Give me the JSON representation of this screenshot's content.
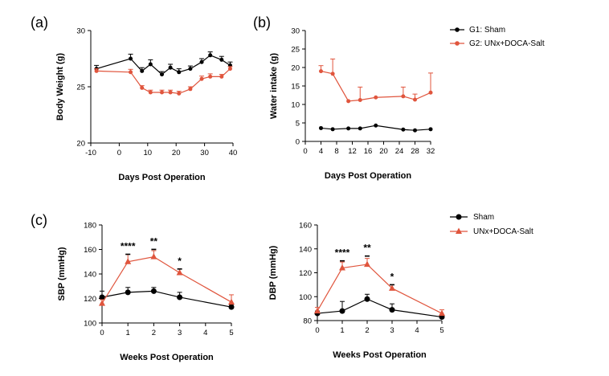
{
  "colors": {
    "sham": "#000000",
    "treat": "#e0553d"
  },
  "legends": {
    "top": [
      "G1: Sham",
      "G2: UNx+DOCA-Salt"
    ],
    "bottom": [
      "Sham",
      "UNx+DOCA-Salt"
    ]
  },
  "chart_data": [
    {
      "panel": "(a)",
      "type": "line",
      "xlabel": "Days Post Operation",
      "ylabel": "Body Weight (g)",
      "xlim": [
        -10,
        40
      ],
      "ylim": [
        20,
        30
      ],
      "xticks": [
        -10,
        0,
        10,
        20,
        30,
        40
      ],
      "yticks": [
        20,
        25,
        30
      ],
      "xtick_labels": [
        "-10",
        "0",
        "10",
        "20",
        "30",
        "40"
      ],
      "ytick_labels": [
        "20",
        "25",
        "30"
      ],
      "series": [
        {
          "name": "G1: Sham",
          "marker": "circle",
          "x": [
            -8,
            4,
            8,
            11,
            15,
            18,
            21,
            25,
            29,
            32,
            36,
            39
          ],
          "y": [
            26.6,
            27.5,
            26.4,
            27.0,
            26.1,
            26.7,
            26.3,
            26.6,
            27.2,
            27.8,
            27.4,
            26.9
          ],
          "err": [
            0.3,
            0.4,
            0.3,
            0.4,
            0.25,
            0.3,
            0.3,
            0.25,
            0.3,
            0.3,
            0.3,
            0.3
          ]
        },
        {
          "name": "G2: UNx+DOCA-Salt",
          "marker": "circle",
          "x": [
            -8,
            4,
            8,
            11,
            15,
            18,
            21,
            25,
            29,
            32,
            36,
            39
          ],
          "y": [
            26.4,
            26.3,
            24.9,
            24.5,
            24.5,
            24.5,
            24.4,
            24.8,
            25.7,
            25.9,
            25.9,
            26.6
          ],
          "err": [
            0.2,
            0.25,
            0.2,
            0.2,
            0.2,
            0.2,
            0.2,
            0.2,
            0.25,
            0.25,
            0.2,
            0.2
          ]
        }
      ]
    },
    {
      "panel": "(b)",
      "type": "line",
      "xlabel": "Days Post Operation",
      "ylabel": "Water intake (g)",
      "xlim": [
        0,
        32
      ],
      "ylim": [
        0,
        30
      ],
      "xticks": [
        0,
        4,
        8,
        12,
        16,
        20,
        24,
        28,
        32
      ],
      "yticks": [
        0,
        5,
        10,
        15,
        20,
        25,
        30
      ],
      "xtick_labels": [
        "0",
        "4",
        "8",
        "12",
        "16",
        "20",
        "24",
        "28",
        "32"
      ],
      "ytick_labels": [
        "0",
        "5",
        "10",
        "15",
        "20",
        "25",
        "30"
      ],
      "series": [
        {
          "name": "G1: Sham",
          "marker": "circle",
          "x": [
            4,
            7,
            11,
            14,
            18,
            25,
            28,
            32
          ],
          "y": [
            3.6,
            3.3,
            3.5,
            3.5,
            4.3,
            3.2,
            3.0,
            3.3
          ],
          "err": [
            0,
            0,
            0,
            0,
            0,
            0,
            0,
            0
          ]
        },
        {
          "name": "G2: UNx+DOCA-Salt",
          "marker": "circle",
          "x": [
            4,
            7,
            11,
            14,
            18,
            25,
            28,
            32
          ],
          "y": [
            19.0,
            18.3,
            10.9,
            11.2,
            11.9,
            12.2,
            11.3,
            13.2
          ],
          "err": [
            1.5,
            4.0,
            0,
            3.5,
            0,
            2.5,
            1.5,
            5.3
          ]
        }
      ]
    },
    {
      "panel": "(c)",
      "type": "line",
      "xlabel": "Weeks Post Operation",
      "ylabel": "SBP (mmHg)",
      "xlim": [
        0,
        5
      ],
      "ylim": [
        100,
        180
      ],
      "xticks": [
        0,
        1,
        2,
        3,
        4,
        5
      ],
      "yticks": [
        100,
        120,
        140,
        160,
        180
      ],
      "xtick_labels": [
        "0",
        "1",
        "2",
        "3",
        "4",
        "5"
      ],
      "ytick_labels": [
        "100",
        "120",
        "140",
        "160",
        "180"
      ],
      "series": [
        {
          "name": "Sham",
          "marker": "circle",
          "x": [
            0,
            1,
            2,
            3,
            5
          ],
          "y": [
            121,
            125,
            126,
            121,
            113
          ],
          "err": [
            5,
            4,
            3,
            4,
            2
          ]
        },
        {
          "name": "UNx+DOCA-Salt",
          "marker": "triangle",
          "x": [
            0,
            1,
            2,
            3,
            5
          ],
          "y": [
            116,
            150,
            154,
            141,
            117
          ],
          "err": [
            3,
            6,
            5,
            3,
            6
          ]
        }
      ],
      "significance": [
        {
          "x": 1,
          "label": "****",
          "y": 160
        },
        {
          "x": 2,
          "label": "**",
          "y": 164
        },
        {
          "x": 3,
          "label": "*",
          "y": 148
        }
      ]
    },
    {
      "panel": "",
      "type": "line",
      "xlabel": "Weeks Post Operation",
      "ylabel": "DBP (mmHg)",
      "xlim": [
        0,
        5
      ],
      "ylim": [
        80,
        160
      ],
      "xticks": [
        0,
        1,
        2,
        3,
        4,
        5
      ],
      "yticks": [
        80,
        100,
        120,
        140,
        160
      ],
      "xtick_labels": [
        "0",
        "1",
        "2",
        "3",
        "4",
        "5"
      ],
      "ytick_labels": [
        "80",
        "100",
        "120",
        "140",
        "160"
      ],
      "series": [
        {
          "name": "Sham",
          "marker": "circle",
          "x": [
            0,
            1,
            2,
            3,
            5
          ],
          "y": [
            86,
            88,
            98,
            89,
            83
          ],
          "err": [
            2,
            8,
            4,
            5,
            2
          ]
        },
        {
          "name": "UNx+DOCA-Salt",
          "marker": "triangle",
          "x": [
            0,
            1,
            2,
            3,
            5
          ],
          "y": [
            88,
            124,
            127,
            107,
            86
          ],
          "err": [
            3,
            5,
            5,
            3,
            3
          ]
        }
      ],
      "significance": [
        {
          "x": 1,
          "label": "****",
          "y": 134
        },
        {
          "x": 2,
          "label": "**",
          "y": 138
        },
        {
          "x": 3,
          "label": "*",
          "y": 114
        }
      ]
    }
  ]
}
